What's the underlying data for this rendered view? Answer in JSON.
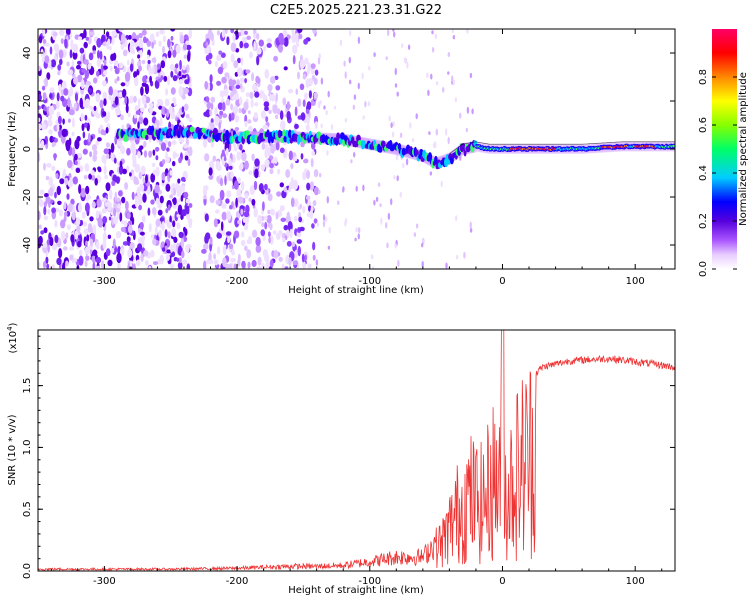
{
  "chart_data": [
    {
      "type": "heatmap",
      "title": "C2E5.2025.221.23.31.G22",
      "xlabel": "Height of straight line (km)",
      "ylabel": "Frequency (Hz)",
      "xlim": [
        -350,
        130
      ],
      "ylim": [
        -50,
        50
      ],
      "xticks": [
        -300,
        -200,
        -100,
        0,
        100
      ],
      "yticks": [
        -40,
        -20,
        0,
        20,
        40
      ],
      "colorbar": {
        "label": "Normalized spectral amplitude",
        "range": [
          0,
          1
        ],
        "ticks": [
          "0.0",
          "0.2",
          "0.4",
          "0.6",
          "0.8"
        ],
        "colors": [
          "#ffffff",
          "#cc99ff",
          "#6600cc",
          "#0000ff",
          "#00ccff",
          "#00ff66",
          "#99ff00",
          "#ffff00",
          "#ff6600",
          "#ff0000",
          "#ff0066"
        ]
      },
      "trend_line": {
        "x": [
          -280,
          -240,
          -200,
          -160,
          -120,
          -100,
          -80,
          -60,
          -50,
          -40,
          -30,
          -20,
          -10,
          0,
          20,
          60,
          90,
          120,
          130
        ],
        "y": [
          6,
          7,
          5,
          5,
          4,
          2,
          0,
          -3,
          -6,
          -4,
          0,
          1,
          0,
          0,
          0,
          0,
          1,
          1,
          1
        ]
      },
      "noise_regions": [
        [
          -350,
          -235
        ],
        [
          -225,
          -140
        ]
      ]
    },
    {
      "type": "line",
      "title": "",
      "xlabel": "Height of straight line (km)",
      "ylabel": "SNR (10 * v/v)",
      "yscale_label": "(x10",
      "yscale_exp": "4",
      "xlim": [
        -350,
        130
      ],
      "ylim": [
        0,
        1.95
      ],
      "xticks": [
        -300,
        -200,
        -100,
        0,
        100
      ],
      "yticks": [
        "0.0",
        "0.5",
        "1.0",
        "1.5"
      ],
      "color": "#ee3333",
      "envelope": {
        "x": [
          -350,
          -250,
          -200,
          -160,
          -140,
          -120,
          -100,
          -80,
          -60,
          -45,
          -35,
          -25,
          -15,
          -5,
          0,
          5,
          10,
          20,
          30,
          50,
          80,
          110,
          130
        ],
        "y": [
          0.02,
          0.02,
          0.03,
          0.05,
          0.05,
          0.06,
          0.1,
          0.15,
          0.15,
          0.4,
          0.75,
          1.0,
          0.9,
          1.3,
          1.0,
          1.1,
          1.3,
          1.55,
          1.65,
          1.7,
          1.72,
          1.68,
          1.65
        ]
      }
    }
  ]
}
